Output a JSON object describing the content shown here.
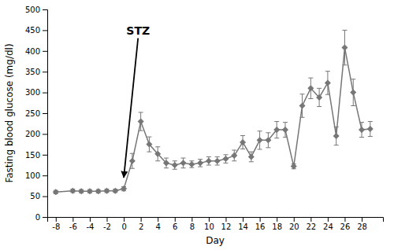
{
  "chart_data": {
    "type": "line",
    "x": [
      -8,
      -6,
      -5,
      -4,
      -3,
      -2,
      -1,
      0,
      1,
      2,
      3,
      4,
      5,
      6,
      7,
      8,
      9,
      10,
      11,
      12,
      13,
      14,
      15,
      16,
      17,
      18,
      19,
      20,
      21,
      22,
      23,
      24,
      25,
      26,
      27,
      28,
      29
    ],
    "values": [
      60,
      63,
      62,
      62,
      62,
      63,
      63,
      68,
      135,
      230,
      175,
      152,
      130,
      125,
      130,
      127,
      130,
      135,
      135,
      140,
      148,
      180,
      145,
      185,
      185,
      210,
      210,
      122,
      268,
      310,
      288,
      323,
      195,
      408,
      300,
      210,
      212
    ],
    "errors": [
      4,
      4,
      4,
      4,
      4,
      4,
      4,
      5,
      18,
      22,
      18,
      17,
      12,
      10,
      12,
      8,
      9,
      10,
      10,
      10,
      13,
      16,
      12,
      22,
      18,
      20,
      18,
      6,
      28,
      25,
      22,
      28,
      22,
      42,
      32,
      18,
      18
    ],
    "color": "#767676",
    "marker": "diamond",
    "xlabel": "Day",
    "ylabel": "Fasting blood glucose (mg/dl)",
    "xlim": [
      -9,
      30.5
    ],
    "ylim": [
      0,
      500
    ],
    "xticks": [
      -8,
      -6,
      -4,
      -2,
      0,
      2,
      4,
      6,
      8,
      10,
      12,
      14,
      16,
      18,
      20,
      22,
      24,
      26,
      28
    ],
    "yticks": [
      0,
      50,
      100,
      150,
      200,
      250,
      300,
      350,
      400,
      450,
      500
    ],
    "grid": false,
    "annotations": [
      {
        "text": "STZ",
        "x": 0,
        "y": 95,
        "text_x": 0.3,
        "text_y": 460
      }
    ]
  }
}
